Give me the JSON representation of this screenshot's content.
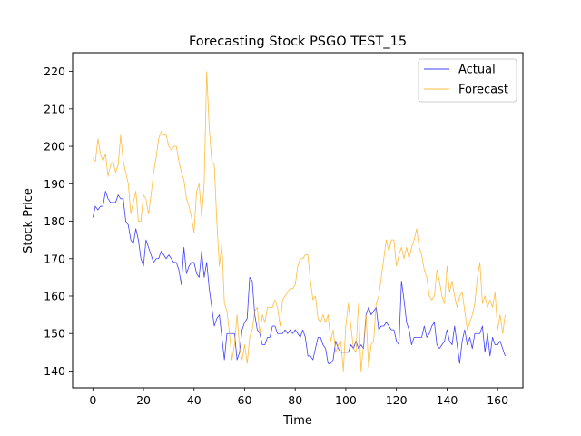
{
  "chart_data": {
    "type": "line",
    "title": "Forecasting Stock PSGO TEST_15",
    "xlabel": "Time",
    "ylabel": "Stock Price",
    "xlim": [
      -8,
      170
    ],
    "ylim": [
      135.5,
      225
    ],
    "xticks": [
      0,
      20,
      40,
      60,
      80,
      100,
      120,
      140,
      160
    ],
    "yticks": [
      140,
      150,
      160,
      170,
      180,
      190,
      200,
      210,
      220
    ],
    "grid": false,
    "legend_position": "top-right",
    "series": [
      {
        "name": "Actual",
        "color": "#0000ff",
        "values": [
          181,
          184,
          183,
          184,
          184,
          188,
          186,
          185,
          185,
          185,
          187,
          186,
          186,
          180,
          179,
          175,
          174,
          178,
          175,
          170,
          168,
          175,
          173,
          171,
          169,
          170,
          170,
          172,
          171,
          170,
          171,
          170,
          169,
          169,
          167,
          163,
          173,
          166,
          168,
          169,
          169,
          166,
          165,
          172,
          165,
          169,
          162,
          157,
          152,
          154,
          155,
          149,
          143,
          150,
          150,
          150,
          150,
          143,
          145,
          151,
          153,
          154,
          165,
          164,
          155,
          151,
          150,
          147,
          147,
          149,
          149,
          152,
          152,
          150,
          150,
          150,
          151,
          150,
          151,
          150,
          151,
          150,
          149,
          151,
          149,
          144,
          144,
          143,
          146,
          149,
          149,
          147,
          146,
          142,
          142,
          143,
          148,
          146,
          145,
          145,
          145,
          145,
          147,
          146,
          148,
          146,
          147,
          146,
          155,
          157,
          155,
          156,
          157,
          151,
          152,
          152,
          153,
          152,
          151,
          151,
          148,
          147,
          164,
          159,
          153,
          151,
          147,
          149,
          149,
          149,
          149,
          152,
          149,
          150,
          152,
          153,
          147,
          146,
          147,
          148,
          151,
          148,
          147,
          152,
          147,
          142,
          148,
          151,
          147,
          149,
          146,
          150,
          150,
          150,
          152,
          145,
          150,
          144,
          149,
          147,
          147,
          148,
          146,
          144
        ]
      },
      {
        "name": "Forecast",
        "color": "#ffa500",
        "values": [
          197,
          196,
          202,
          198,
          196,
          198,
          192,
          195,
          196,
          193,
          195,
          203,
          196,
          193,
          190,
          182,
          185,
          188,
          180,
          180,
          187,
          186,
          182,
          187,
          193,
          197,
          202,
          204,
          203,
          203,
          200,
          199,
          200,
          200,
          196,
          193,
          191,
          186,
          184,
          181,
          177,
          188,
          190,
          181,
          190,
          220,
          205,
          196,
          195,
          180,
          168,
          174,
          158,
          156,
          150,
          143,
          147,
          155,
          146,
          143,
          147,
          142,
          149,
          151,
          156,
          157,
          150,
          155,
          153,
          157,
          157,
          157,
          159,
          157,
          152,
          159,
          160,
          161,
          162,
          162,
          163,
          168,
          170,
          170,
          171,
          171,
          164,
          159,
          160,
          154,
          153,
          155,
          153,
          155,
          148,
          151,
          145,
          147,
          148,
          140,
          152,
          158,
          152,
          146,
          145,
          158,
          140,
          147,
          155,
          141,
          147,
          148,
          158,
          160,
          165,
          170,
          175,
          172,
          175,
          175,
          168,
          171,
          173,
          170,
          173,
          170,
          173,
          175,
          178,
          173,
          171,
          167,
          165,
          160,
          159,
          160,
          167,
          164,
          160,
          158,
          168,
          161,
          164,
          160,
          157,
          160,
          161,
          156,
          151,
          153,
          155,
          158,
          165,
          169,
          158,
          160,
          157,
          159,
          157,
          161,
          151,
          155,
          150,
          155
        ]
      }
    ]
  }
}
